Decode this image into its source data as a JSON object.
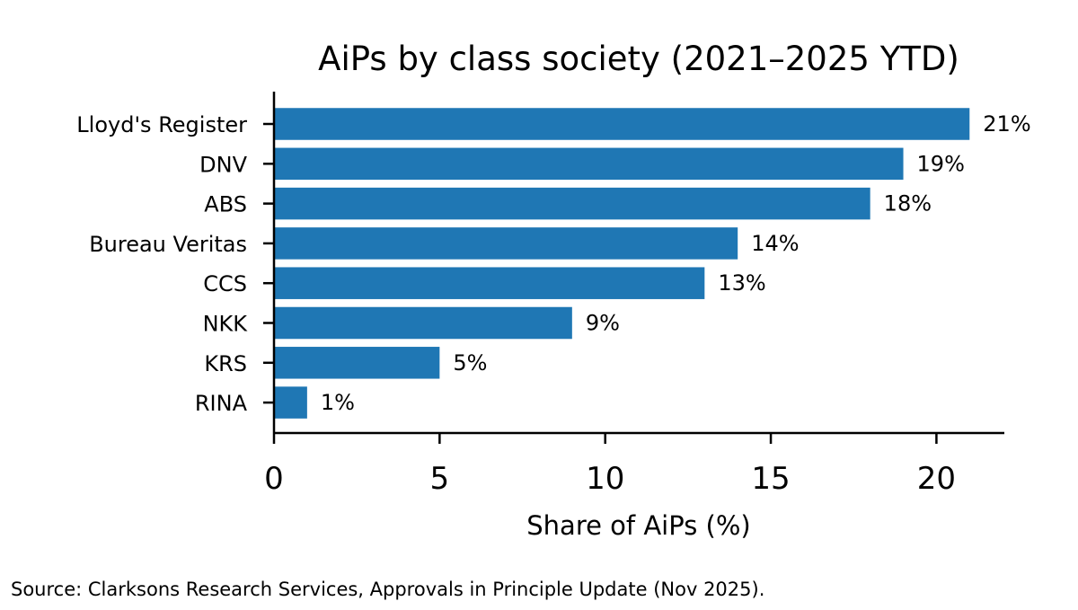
{
  "chart_data": {
    "type": "bar",
    "orientation": "horizontal",
    "title": "AiPs by class society (2021–2025 YTD)",
    "xlabel": "Share of AiPs (%)",
    "ylabel": "",
    "categories": [
      "Lloyd's Register",
      "DNV",
      "ABS",
      "Bureau Veritas",
      "CCS",
      "NKK",
      "KRS",
      "RINA"
    ],
    "values": [
      21,
      19,
      18,
      14,
      13,
      9,
      5,
      1
    ],
    "data_labels": [
      "21%",
      "19%",
      "18%",
      "14%",
      "13%",
      "9%",
      "5%",
      "1%"
    ],
    "xlim": [
      0,
      22.05
    ],
    "xticks": [
      0,
      5,
      10,
      15,
      20
    ],
    "xtick_labels": [
      "0",
      "5",
      "10",
      "15",
      "20"
    ],
    "grid": false,
    "legend": "none",
    "bar_color": "#1f77b4"
  },
  "footer": {
    "source": "Source: Clarksons Research Services, Approvals in Principle Update (Nov 2025)."
  }
}
